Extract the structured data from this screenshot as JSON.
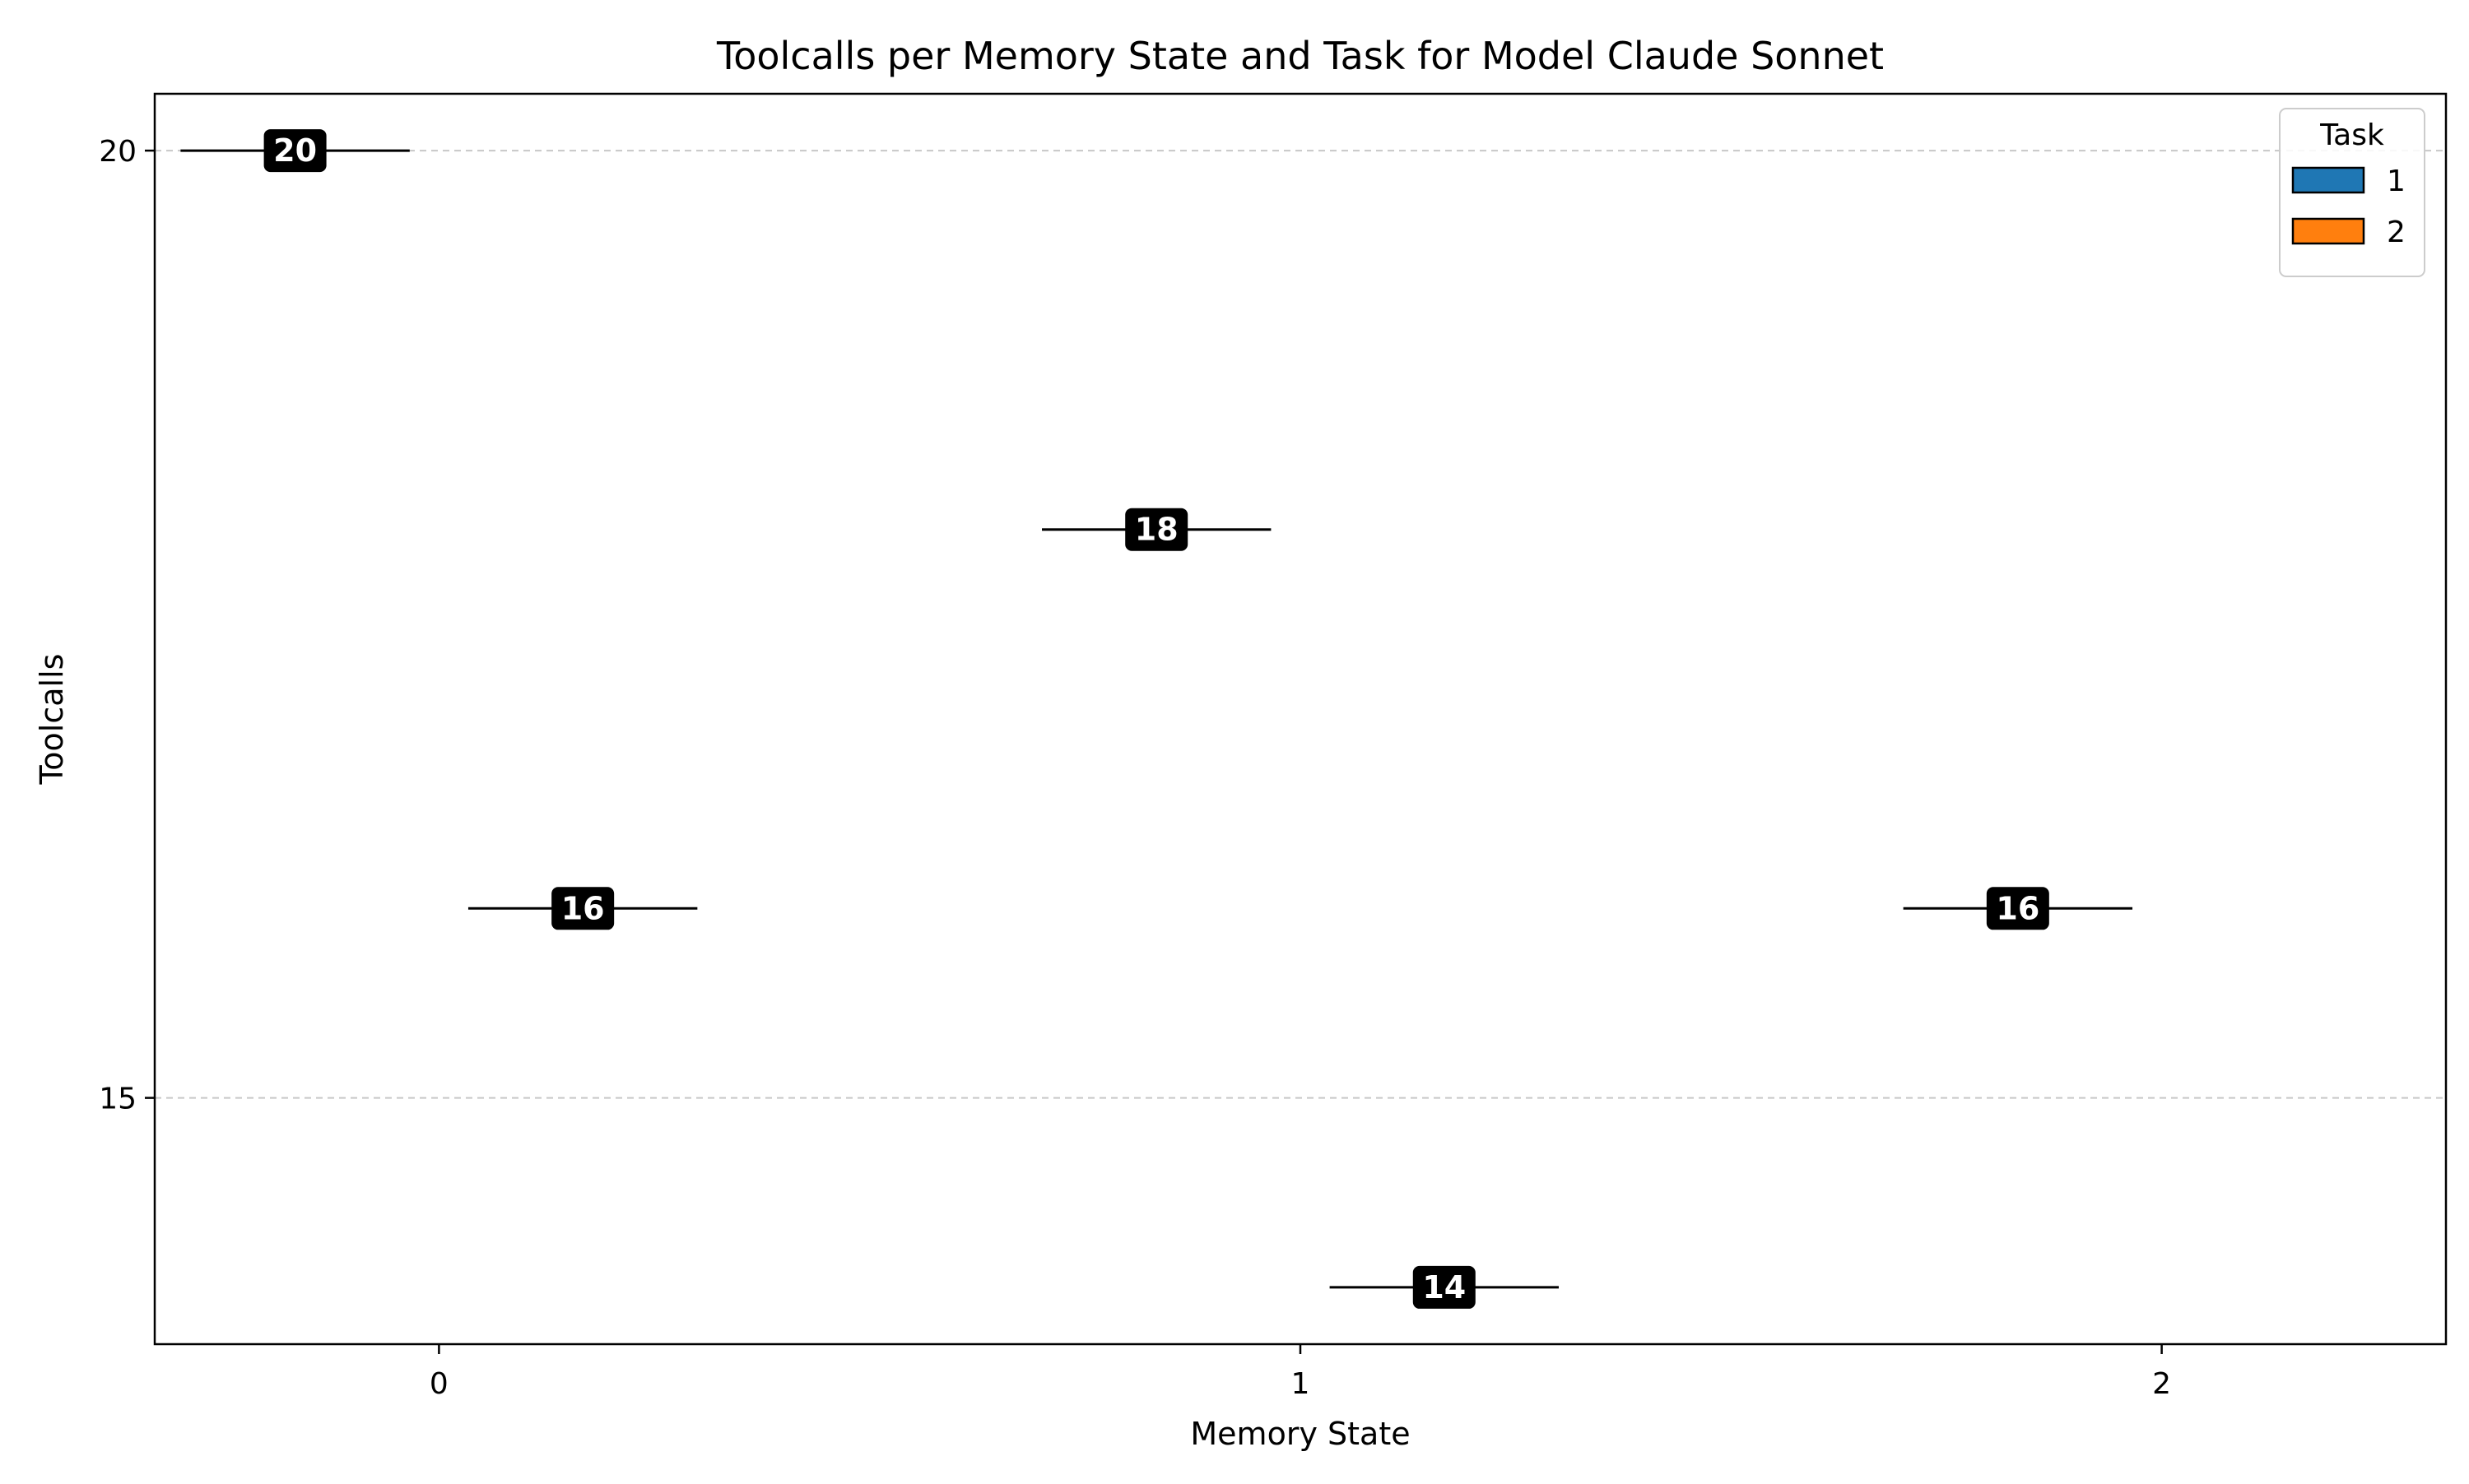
{
  "chart_data": {
    "type": "box",
    "title": "Toolcalls per Memory State and Task for Model Claude Sonnet",
    "xlabel": "Memory State",
    "ylabel": "Toolcalls",
    "categories": [
      "0",
      "1",
      "2"
    ],
    "yticks": [
      15,
      20
    ],
    "ylim": [
      13.7,
      20.3
    ],
    "xlim": [
      -0.33,
      2.33
    ],
    "grid": "y-dashed",
    "legend": {
      "title": "Task",
      "placement": "top-right",
      "entries": [
        {
          "label": "1",
          "color": "#1f77b4"
        },
        {
          "label": "2",
          "color": "#ff7f0e"
        }
      ]
    },
    "series": [
      {
        "task": "1",
        "color": "#1f77b4",
        "values": [
          20,
          18,
          16
        ]
      },
      {
        "task": "2",
        "color": "#ff7f0e",
        "values": [
          16,
          14,
          null
        ]
      }
    ],
    "data_labels": [
      "20",
      "18",
      "16",
      "16",
      "14"
    ]
  }
}
